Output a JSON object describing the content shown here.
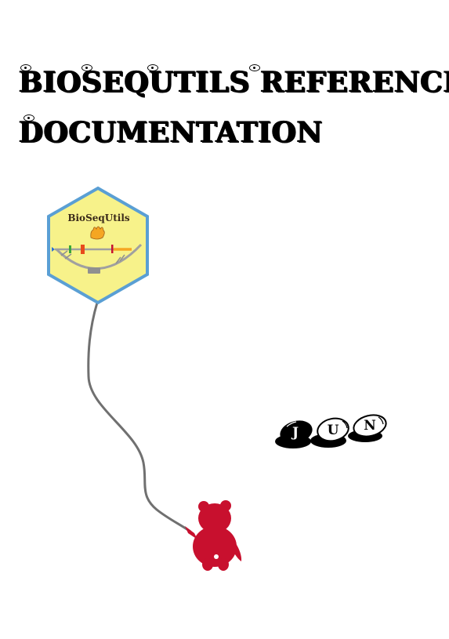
{
  "document": {
    "title_line_1": "BIOSEQUTILS REFERENCE",
    "title_line_2": "DOCUMENTATION"
  },
  "logo": {
    "package_name": "BioSeqUtils",
    "fill_color": "#f7f28a",
    "border_color": "#5a9fd4"
  },
  "author_mark": {
    "letters": [
      "J",
      "U",
      "N"
    ]
  },
  "colors": {
    "bear": "#c8102e",
    "string": "#707070",
    "text": "#000000"
  }
}
